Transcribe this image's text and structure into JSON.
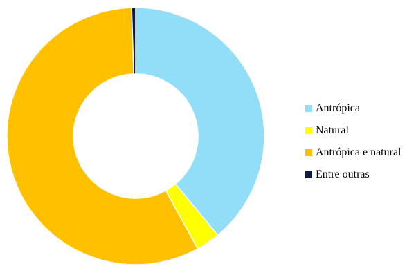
{
  "chart_data": {
    "type": "pie",
    "style": "donut",
    "title": "",
    "legend_position": "right",
    "slices": [
      {
        "label": "Antrópica",
        "value": 39.0,
        "color": "#92DDF7"
      },
      {
        "label": "Natural",
        "value": 3.0,
        "color": "#FFFF00"
      },
      {
        "label": "Antrópica e natural",
        "value": 57.5,
        "color": "#FFC000"
      },
      {
        "label": "Entre outras",
        "value": 0.5,
        "color": "#0C1C48"
      }
    ]
  }
}
